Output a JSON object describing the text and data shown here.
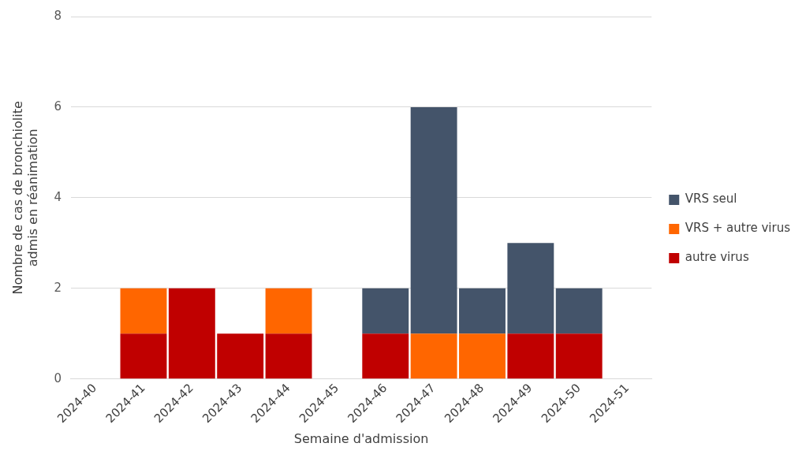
{
  "chart_data": {
    "type": "bar",
    "stacked": true,
    "xlabel": "Semaine d'admission",
    "ylabel": "Nombre de cas de bronchiolite admis en réanimation",
    "categories": [
      "2024-40",
      "2024-41",
      "2024-42",
      "2024-43",
      "2024-44",
      "2024-45",
      "2024-46",
      "2024-47",
      "2024-48",
      "2024-49",
      "2024-50",
      "2024-51"
    ],
    "series": [
      {
        "name": "autre virus",
        "color": "#c00000",
        "values": [
          0,
          1,
          2,
          1,
          1,
          0,
          1,
          0,
          0,
          1,
          1,
          0
        ]
      },
      {
        "name": "VRS + autre virus",
        "color": "#ff6600",
        "values": [
          0,
          1,
          0,
          0,
          1,
          0,
          0,
          1,
          1,
          0,
          0,
          0
        ]
      },
      {
        "name": "VRS seul",
        "color": "#44546a",
        "values": [
          0,
          0,
          0,
          0,
          0,
          0,
          1,
          5,
          1,
          2,
          1,
          0
        ]
      }
    ],
    "ylim": [
      0,
      8
    ],
    "yticks": [
      0,
      2,
      4,
      6,
      8
    ],
    "grid": "y",
    "legend": "right"
  }
}
